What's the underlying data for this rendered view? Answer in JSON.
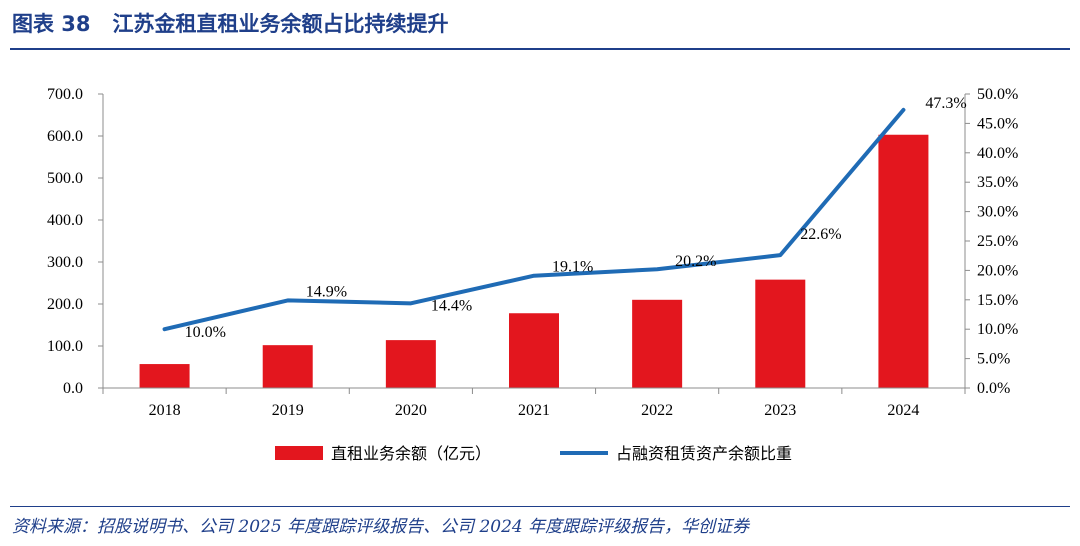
{
  "header": {
    "figure_number": "图表 38",
    "title": "江苏金租直租业务余额占比持续提升"
  },
  "source_note": "资料来源：招股说明书、公司 2025 年度跟踪评级报告、公司 2024 年度跟踪评级报告，华创证券",
  "colors": {
    "bar": "#e3161e",
    "line": "#1f6bb5",
    "accent": "#1f3f8a"
  },
  "chart_data": {
    "type": "bar",
    "categories": [
      "2018",
      "2019",
      "2020",
      "2021",
      "2022",
      "2023",
      "2024"
    ],
    "series": [
      {
        "name": "直租业务余额（亿元）",
        "type": "bar",
        "axis": "left",
        "values": [
          57,
          102,
          114,
          178,
          210,
          258,
          603
        ]
      },
      {
        "name": "占融资租赁资产余额比重",
        "type": "line",
        "axis": "right",
        "values": [
          10.0,
          14.9,
          14.4,
          19.1,
          20.2,
          22.6,
          47.3
        ],
        "labels": [
          "10.0%",
          "14.9%",
          "14.4%",
          "19.1%",
          "20.2%",
          "22.6%",
          "47.3%"
        ]
      }
    ],
    "left_axis": {
      "ylim": [
        0,
        700
      ],
      "ticks": [
        "0.0",
        "100.0",
        "200.0",
        "300.0",
        "400.0",
        "500.0",
        "600.0",
        "700.0"
      ]
    },
    "right_axis": {
      "ylim": [
        0,
        50
      ],
      "ticks": [
        "0.0%",
        "5.0%",
        "10.0%",
        "15.0%",
        "20.0%",
        "25.0%",
        "30.0%",
        "35.0%",
        "40.0%",
        "45.0%",
        "50.0%"
      ]
    },
    "grid": false,
    "legend_position": "bottom"
  }
}
